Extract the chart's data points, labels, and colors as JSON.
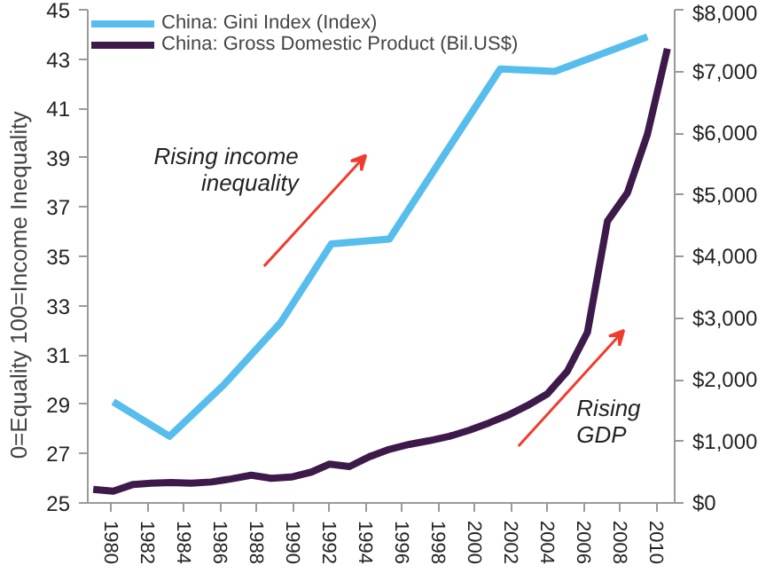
{
  "chart_data": {
    "type": "line",
    "ylabel": "0=Equality          100=Income Inequality",
    "xlim": [
      1978.7,
      2011
    ],
    "xticks": [
      1980,
      1982,
      1984,
      1986,
      1988,
      1990,
      1992,
      1994,
      1996,
      1998,
      2000,
      2002,
      2004,
      2006,
      2008,
      2010
    ],
    "ylim": [
      25,
      45
    ],
    "yticks": [
      25,
      27,
      29,
      31,
      33,
      35,
      37,
      39,
      41,
      43,
      45
    ],
    "y2lim": [
      0,
      8000
    ],
    "y2ticks": [
      {
        "value": 0,
        "label": "$0"
      },
      {
        "value": 1000,
        "label": "$1,000"
      },
      {
        "value": 2000,
        "label": "$2,000"
      },
      {
        "value": 3000,
        "label": "$3,000"
      },
      {
        "value": 4000,
        "label": "$4,000"
      },
      {
        "value": 5000,
        "label": "$5,000"
      },
      {
        "value": 6000,
        "label": "$6,000"
      },
      {
        "value": 7000,
        "label": "$7,000"
      },
      {
        "value": 8000,
        "label": "$8,000"
      }
    ],
    "legend": "top",
    "grid": false,
    "series": [
      {
        "name": "China: Gini Index (Index)",
        "color": "#56bdec",
        "x": [
          1980.1,
          1983.2,
          1986.2,
          1989.3,
          1992.1,
          1995.3,
          1998.3,
          2001.4,
          2004.4,
          2009.5
        ],
        "values": [
          29.1,
          27.7,
          29.8,
          32.3,
          35.5,
          35.7,
          39.1,
          42.6,
          42.5,
          43.9
        ]
      },
      {
        "name": "China: Gross Domestic Product (Bil.US$)",
        "color": "#3d1a4a",
        "axis": "y2",
        "x": [
          1979.0,
          1980.1,
          1981.2,
          1982.2,
          1983.3,
          1984.4,
          1985.5,
          1986.6,
          1987.7,
          1988.8,
          1989.9,
          1991.0,
          1992.0,
          1993.1,
          1994.2,
          1995.3,
          1996.4,
          1997.5,
          1998.6,
          1999.7,
          2000.8,
          2001.8,
          2002.9,
          2004.0,
          2005.1,
          2006.2,
          2007.3,
          2008.4,
          2009.5,
          2010.6
        ],
        "values": [
          220,
          190,
          300,
          320,
          330,
          320,
          340,
          390,
          450,
          400,
          420,
          500,
          630,
          590,
          750,
          870,
          950,
          1010,
          1080,
          1180,
          1300,
          1420,
          1580,
          1770,
          2140,
          2770,
          4570,
          5030,
          5980,
          7370
        ]
      }
    ],
    "annotations": [
      "Rising income inequality",
      "Rising GDP"
    ]
  }
}
